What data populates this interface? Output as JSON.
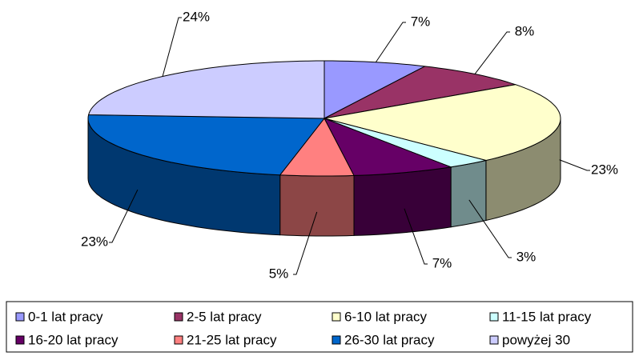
{
  "chart_data": {
    "type": "pie3d",
    "categories": [
      "0-1 lat pracy",
      "2-5 lat pracy",
      "6-10 lat pracy",
      "11-15 lat pracy",
      "16-20 lat pracy",
      "21-25 lat pracy",
      "26-30 lat pracy",
      "powyżej 30"
    ],
    "values": [
      7,
      8,
      23,
      3,
      7,
      5,
      23,
      24
    ],
    "value_labels": [
      "7%",
      "8%",
      "23%",
      "3%",
      "7%",
      "5%",
      "23%",
      "24%"
    ],
    "colors": [
      "#9999ff",
      "#993366",
      "#ffffcc",
      "#ccffff",
      "#660066",
      "#ff8080",
      "#0066cc",
      "#ccccff"
    ],
    "legend": "bottom"
  }
}
